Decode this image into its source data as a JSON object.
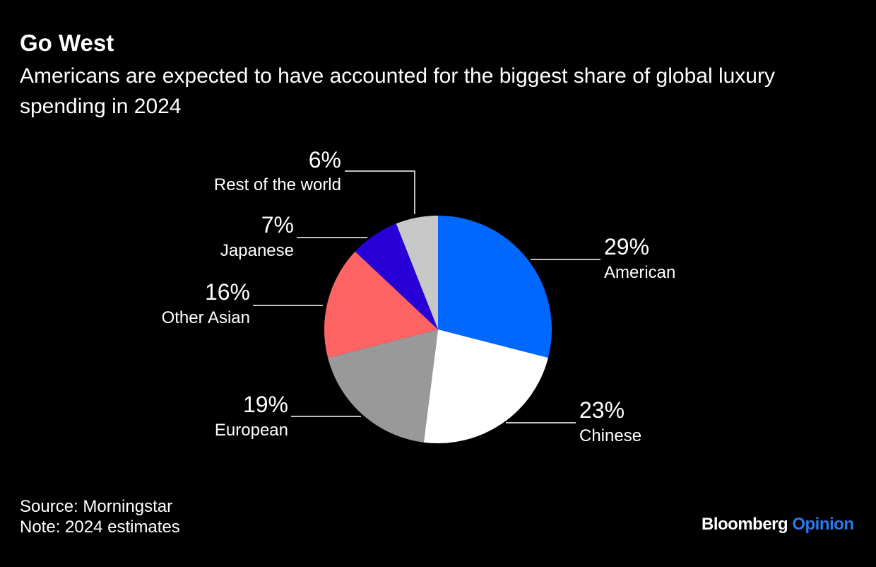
{
  "title": "Go West",
  "subtitle": "Americans are expected to have accounted for the biggest share of global luxury spending in 2024",
  "chart_data": {
    "type": "pie",
    "start": "top",
    "direction": "clockwise",
    "slices": [
      {
        "label": "American",
        "value": 29,
        "display": "29%",
        "color": "#0068ff"
      },
      {
        "label": "Chinese",
        "value": 23,
        "display": "23%",
        "color": "#ffffff"
      },
      {
        "label": "European",
        "value": 19,
        "display": "19%",
        "color": "#999999"
      },
      {
        "label": "Other Asian",
        "value": 16,
        "display": "16%",
        "color": "#ff6464"
      },
      {
        "label": "Japanese",
        "value": 7,
        "display": "7%",
        "color": "#2800d7"
      },
      {
        "label": "Rest of the world",
        "value": 6,
        "display": "6%",
        "color": "#c8c8c8"
      }
    ]
  },
  "footer": {
    "source": "Source: Morningstar",
    "note": "Note: 2024 estimates"
  },
  "logo": {
    "brand": "Bloomberg",
    "product": "Opinion",
    "product_color": "#2b7bf0"
  }
}
